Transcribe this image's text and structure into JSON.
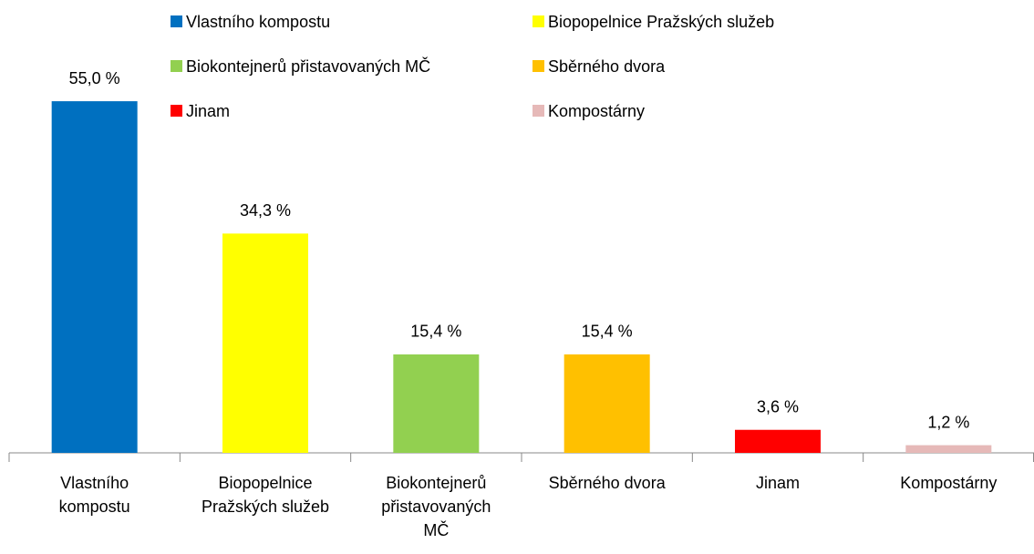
{
  "chart_data": {
    "type": "bar",
    "categories": [
      "Vlastního kompostu",
      "Biopopelnice Pražských služeb",
      "Biokontejnerů přistavovaných MČ",
      "Sběrného dvora",
      "Jinam",
      "Kompostárny"
    ],
    "values": [
      55.0,
      34.3,
      15.4,
      15.4,
      3.6,
      1.2
    ],
    "value_labels": [
      "55,0 %",
      "34,3 %",
      "15,4 %",
      "15,4 %",
      "3,6 %",
      "1,2 %"
    ],
    "colors": [
      "#0070c0",
      "#ffff00",
      "#92d050",
      "#ffc000",
      "#ff0000",
      "#e6b9b8"
    ],
    "ylim": [
      0,
      60
    ],
    "legend": "top"
  }
}
